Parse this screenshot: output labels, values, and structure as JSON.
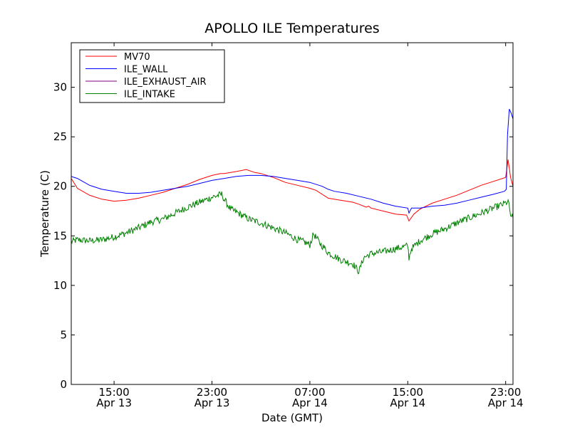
{
  "chart_data": {
    "type": "line",
    "title": "APOLLO ILE Temperatures",
    "xlabel": "Date (GMT)",
    "ylabel": "Temperature (C)",
    "x_unit": "hours since Apr 13 00:00 GMT",
    "xlim": [
      11.5,
      47.6
    ],
    "ylim": [
      0,
      34.5
    ],
    "yticks": [
      0,
      5,
      10,
      15,
      20,
      25,
      30
    ],
    "xticks": [
      {
        "value": 15,
        "line1": "15:00",
        "line2": "Apr 13"
      },
      {
        "value": 23,
        "line1": "23:00",
        "line2": "Apr 13"
      },
      {
        "value": 31,
        "line1": "07:00",
        "line2": "Apr 14"
      },
      {
        "value": 39,
        "line1": "15:00",
        "line2": "Apr 14"
      },
      {
        "value": 47,
        "line1": "23:00",
        "line2": "Apr 14"
      }
    ],
    "grid": false,
    "legend_position": "top-left",
    "series": [
      {
        "name": "MV70",
        "color": "#ff0000",
        "noise": 0,
        "points": [
          [
            11.5,
            20.8
          ],
          [
            12.0,
            19.8
          ],
          [
            13.0,
            19.1
          ],
          [
            14.0,
            18.7
          ],
          [
            15.0,
            18.5
          ],
          [
            16.0,
            18.6
          ],
          [
            17.0,
            18.8
          ],
          [
            18.0,
            19.1
          ],
          [
            19.0,
            19.4
          ],
          [
            20.0,
            19.8
          ],
          [
            21.0,
            20.2
          ],
          [
            22.0,
            20.7
          ],
          [
            23.0,
            21.1
          ],
          [
            23.7,
            21.3
          ],
          [
            24.0,
            21.3
          ],
          [
            25.0,
            21.5
          ],
          [
            25.8,
            21.7
          ],
          [
            26.5,
            21.4
          ],
          [
            27.0,
            21.3
          ],
          [
            28.0,
            20.9
          ],
          [
            29.0,
            20.4
          ],
          [
            30.0,
            20.1
          ],
          [
            31.0,
            19.8
          ],
          [
            31.5,
            19.6
          ],
          [
            32.5,
            18.8
          ],
          [
            33.5,
            18.6
          ],
          [
            34.5,
            18.4
          ],
          [
            35.0,
            18.2
          ],
          [
            35.6,
            17.9
          ],
          [
            35.8,
            18.0
          ],
          [
            36.0,
            17.8
          ],
          [
            37.0,
            17.5
          ],
          [
            38.0,
            17.2
          ],
          [
            38.9,
            17.1
          ],
          [
            39.1,
            16.5
          ],
          [
            39.5,
            17.2
          ],
          [
            40.0,
            17.7
          ],
          [
            41.0,
            18.3
          ],
          [
            42.0,
            18.7
          ],
          [
            43.0,
            19.1
          ],
          [
            44.0,
            19.6
          ],
          [
            45.0,
            20.1
          ],
          [
            46.0,
            20.5
          ],
          [
            47.0,
            20.9
          ],
          [
            47.2,
            22.7
          ],
          [
            47.4,
            20.9
          ],
          [
            47.6,
            20.0
          ]
        ]
      },
      {
        "name": "ILE_WALL",
        "color": "#0000ff",
        "noise": 0,
        "points": [
          [
            11.5,
            21.0
          ],
          [
            12.0,
            20.8
          ],
          [
            13.0,
            20.1
          ],
          [
            14.0,
            19.7
          ],
          [
            15.0,
            19.5
          ],
          [
            16.0,
            19.3
          ],
          [
            17.0,
            19.3
          ],
          [
            18.0,
            19.4
          ],
          [
            19.0,
            19.6
          ],
          [
            20.0,
            19.8
          ],
          [
            21.0,
            20.0
          ],
          [
            22.0,
            20.3
          ],
          [
            23.0,
            20.6
          ],
          [
            24.0,
            20.8
          ],
          [
            25.0,
            21.0
          ],
          [
            26.0,
            21.1
          ],
          [
            27.0,
            21.1
          ],
          [
            28.0,
            21.0
          ],
          [
            29.0,
            20.8
          ],
          [
            30.0,
            20.6
          ],
          [
            31.0,
            20.4
          ],
          [
            32.0,
            20.0
          ],
          [
            32.5,
            19.7
          ],
          [
            33.0,
            19.5
          ],
          [
            34.0,
            19.3
          ],
          [
            35.0,
            19.0
          ],
          [
            36.0,
            18.7
          ],
          [
            37.0,
            18.3
          ],
          [
            38.0,
            18.0
          ],
          [
            39.0,
            17.8
          ],
          [
            39.1,
            17.3
          ],
          [
            39.3,
            17.8
          ],
          [
            40.0,
            17.8
          ],
          [
            41.0,
            18.0
          ],
          [
            42.0,
            18.1
          ],
          [
            43.0,
            18.3
          ],
          [
            44.0,
            18.6
          ],
          [
            45.0,
            18.9
          ],
          [
            46.0,
            19.2
          ],
          [
            46.9,
            19.5
          ],
          [
            47.05,
            19.7
          ],
          [
            47.15,
            25.2
          ],
          [
            47.3,
            27.8
          ],
          [
            47.45,
            27.4
          ],
          [
            47.6,
            26.8
          ]
        ]
      },
      {
        "name": "ILE_EXHAUST_AIR",
        "color": "#800080",
        "noise": 0,
        "points": []
      },
      {
        "name": "ILE_INTAKE",
        "color": "#008000",
        "noise": 0.35,
        "points": [
          [
            11.5,
            14.4
          ],
          [
            12.0,
            14.6
          ],
          [
            13.0,
            14.5
          ],
          [
            14.0,
            14.6
          ],
          [
            15.0,
            14.9
          ],
          [
            16.0,
            15.3
          ],
          [
            17.0,
            15.8
          ],
          [
            18.0,
            16.4
          ],
          [
            19.0,
            16.7
          ],
          [
            20.0,
            17.3
          ],
          [
            21.0,
            17.9
          ],
          [
            22.0,
            18.4
          ],
          [
            23.0,
            18.9
          ],
          [
            23.8,
            19.2
          ],
          [
            24.0,
            18.7
          ],
          [
            24.5,
            17.7
          ],
          [
            25.0,
            17.4
          ],
          [
            26.0,
            16.7
          ],
          [
            27.0,
            16.3
          ],
          [
            28.0,
            15.8
          ],
          [
            29.0,
            15.3
          ],
          [
            30.0,
            14.6
          ],
          [
            30.5,
            14.4
          ],
          [
            31.0,
            14.1
          ],
          [
            31.3,
            15.2
          ],
          [
            31.8,
            14.3
          ],
          [
            32.5,
            13.3
          ],
          [
            33.5,
            12.6
          ],
          [
            34.5,
            12.2
          ],
          [
            35.0,
            11.4
          ],
          [
            35.4,
            12.8
          ],
          [
            36.0,
            13.2
          ],
          [
            37.0,
            13.4
          ],
          [
            38.0,
            13.7
          ],
          [
            39.0,
            14.0
          ],
          [
            39.1,
            12.8
          ],
          [
            39.3,
            13.7
          ],
          [
            40.0,
            14.5
          ],
          [
            41.0,
            15.2
          ],
          [
            42.0,
            15.7
          ],
          [
            43.0,
            16.3
          ],
          [
            44.0,
            16.8
          ],
          [
            45.0,
            17.3
          ],
          [
            46.0,
            17.8
          ],
          [
            47.0,
            18.3
          ],
          [
            47.2,
            18.5
          ],
          [
            47.4,
            17.1
          ],
          [
            47.6,
            16.8
          ]
        ]
      }
    ]
  }
}
